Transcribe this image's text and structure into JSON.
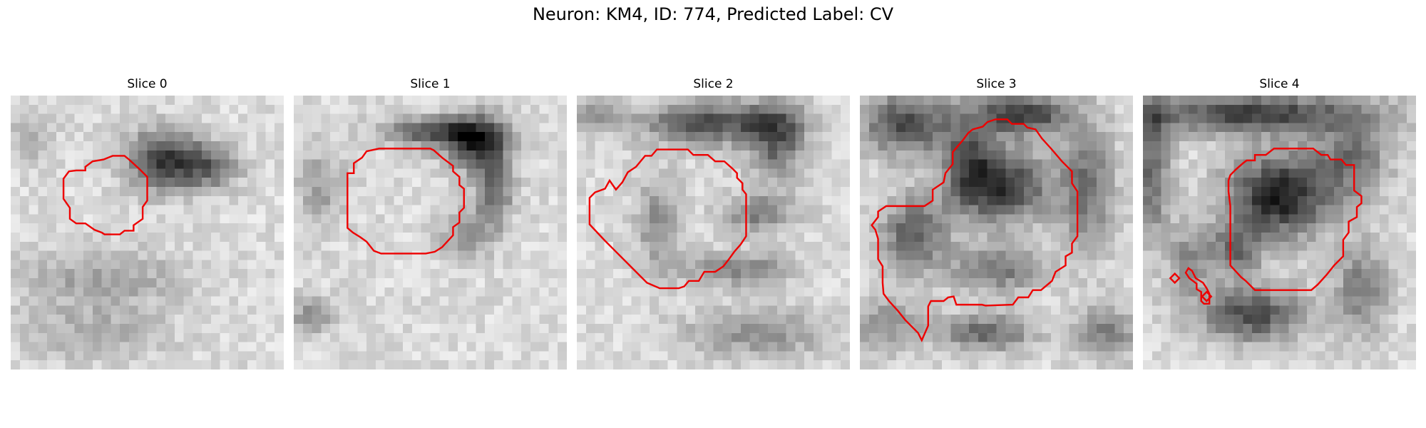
{
  "figure": {
    "title": "Neuron: KM4, ID: 774, Predicted Label: CV"
  },
  "panels": [
    {
      "title": "Slice 0",
      "blobs": [
        {
          "cx": 17,
          "cy": 7,
          "rx": 4.2,
          "ry": 3.2,
          "strength": 0.65
        },
        {
          "cx": 22,
          "cy": 8,
          "rx": 3.2,
          "ry": 2.2,
          "strength": 0.35
        },
        {
          "cx": 10,
          "cy": 20,
          "rx": 9.0,
          "ry": 3.2,
          "strength": 0.22
        },
        {
          "cx": 2,
          "cy": 5,
          "rx": 2.5,
          "ry": 2.5,
          "strength": 0.18
        },
        {
          "cx": 9,
          "cy": 26,
          "rx": 8.0,
          "ry": 3.0,
          "strength": 0.18
        }
      ],
      "contours": [
        [
          [
            7.2,
            8.2
          ],
          [
            8.2,
            8.2
          ],
          [
            8.2,
            7.8
          ],
          [
            9.0,
            7.2
          ],
          [
            10.2,
            7.0
          ],
          [
            11.2,
            6.6
          ],
          [
            12.5,
            6.6
          ],
          [
            13.0,
            7.0
          ],
          [
            14.2,
            8.1
          ],
          [
            15.0,
            8.9
          ],
          [
            15.0,
            11.5
          ],
          [
            14.5,
            12.2
          ],
          [
            14.5,
            13.5
          ],
          [
            13.5,
            14.2
          ],
          [
            13.5,
            14.8
          ],
          [
            12.5,
            14.8
          ],
          [
            12.0,
            15.2
          ],
          [
            10.3,
            15.2
          ],
          [
            10.0,
            15.0
          ],
          [
            9.2,
            14.7
          ],
          [
            8.2,
            14.0
          ],
          [
            7.2,
            14.0
          ],
          [
            6.5,
            13.5
          ],
          [
            6.5,
            12.3
          ],
          [
            5.8,
            11.3
          ],
          [
            5.8,
            9.1
          ],
          [
            6.4,
            8.3
          ]
        ]
      ]
    },
    {
      "title": "Slice 1",
      "blobs": [
        {
          "cx": 15,
          "cy": 4,
          "rx": 5.5,
          "ry": 1.6,
          "strength": 0.5
        },
        {
          "cx": 20,
          "cy": 5,
          "rx": 3.5,
          "ry": 3.0,
          "strength": 0.65
        },
        {
          "cx": 22,
          "cy": 10,
          "rx": 2.0,
          "ry": 4.0,
          "strength": 0.45
        },
        {
          "cx": 19,
          "cy": 15,
          "rx": 3.0,
          "ry": 2.5,
          "strength": 0.3
        },
        {
          "cx": 3,
          "cy": 10,
          "rx": 2.5,
          "ry": 4.0,
          "strength": 0.25
        },
        {
          "cx": 2,
          "cy": 24,
          "rx": 2.0,
          "ry": 2.0,
          "strength": 0.35
        }
      ],
      "contours": [
        [
          [
            5.9,
            8.5
          ],
          [
            6.6,
            8.5
          ],
          [
            6.6,
            7.4
          ],
          [
            7.5,
            6.8
          ],
          [
            8.0,
            6.1
          ],
          [
            9.4,
            5.8
          ],
          [
            15.0,
            5.8
          ],
          [
            15.4,
            6.0
          ],
          [
            16.3,
            6.8
          ],
          [
            17.5,
            7.7
          ],
          [
            17.5,
            8.3
          ],
          [
            18.2,
            8.9
          ],
          [
            18.2,
            9.8
          ],
          [
            18.7,
            10.2
          ],
          [
            18.7,
            12.3
          ],
          [
            18.2,
            12.8
          ],
          [
            18.2,
            13.9
          ],
          [
            17.5,
            14.4
          ],
          [
            17.5,
            15.3
          ],
          [
            16.3,
            16.6
          ],
          [
            15.5,
            17.1
          ],
          [
            14.5,
            17.3
          ],
          [
            9.6,
            17.3
          ],
          [
            8.8,
            17.0
          ],
          [
            8.0,
            16.0
          ],
          [
            7.3,
            15.5
          ],
          [
            6.5,
            15.0
          ],
          [
            5.9,
            14.5
          ],
          [
            5.9,
            11.2
          ],
          [
            5.9,
            9.5
          ]
        ]
      ]
    },
    {
      "title": "Slice 2",
      "blobs": [
        {
          "cx": 15,
          "cy": 3,
          "rx": 8.0,
          "ry": 2.3,
          "strength": 0.55
        },
        {
          "cx": 22,
          "cy": 5,
          "rx": 3.0,
          "ry": 4.5,
          "strength": 0.45
        },
        {
          "cx": 20,
          "cy": 13,
          "rx": 4.0,
          "ry": 2.0,
          "strength": 0.35
        },
        {
          "cx": 9,
          "cy": 14,
          "rx": 2.5,
          "ry": 5.0,
          "strength": 0.3
        },
        {
          "cx": 18,
          "cy": 19,
          "rx": 6.0,
          "ry": 1.8,
          "strength": 0.35
        },
        {
          "cx": 2,
          "cy": 2,
          "rx": 2.0,
          "ry": 2.0,
          "strength": 0.3
        },
        {
          "cx": 20,
          "cy": 26,
          "rx": 8.0,
          "ry": 2.5,
          "strength": 0.3
        }
      ],
      "contours": [
        [
          [
            4.3,
            10.3
          ],
          [
            5.0,
            9.5
          ],
          [
            5.6,
            8.4
          ],
          [
            6.5,
            7.8
          ],
          [
            7.5,
            6.6
          ],
          [
            8.2,
            6.6
          ],
          [
            8.8,
            5.9
          ],
          [
            12.2,
            5.9
          ],
          [
            12.8,
            6.5
          ],
          [
            14.4,
            6.5
          ],
          [
            15.2,
            7.2
          ],
          [
            16.2,
            7.2
          ],
          [
            17.1,
            8.0
          ],
          [
            17.6,
            8.5
          ],
          [
            17.6,
            9.0
          ],
          [
            18.2,
            9.6
          ],
          [
            18.2,
            10.3
          ],
          [
            18.6,
            10.8
          ],
          [
            18.6,
            15.4
          ],
          [
            18.0,
            16.3
          ],
          [
            17.3,
            17.1
          ],
          [
            16.8,
            17.8
          ],
          [
            16.1,
            18.7
          ],
          [
            15.2,
            19.3
          ],
          [
            14.0,
            19.3
          ],
          [
            13.4,
            20.3
          ],
          [
            12.3,
            20.3
          ],
          [
            11.8,
            20.9
          ],
          [
            11.2,
            21.1
          ],
          [
            9.1,
            21.1
          ],
          [
            7.7,
            20.5
          ],
          [
            6.0,
            18.8
          ],
          [
            4.0,
            16.8
          ],
          [
            3.0,
            15.8
          ],
          [
            1.4,
            14.1
          ],
          [
            1.4,
            11.2
          ],
          [
            2.0,
            10.6
          ],
          [
            3.1,
            10.2
          ],
          [
            3.6,
            9.3
          ]
        ]
      ]
    },
    {
      "title": "Slice 3",
      "blobs": [
        {
          "cx": 5,
          "cy": 3,
          "rx": 5.0,
          "ry": 3.5,
          "strength": 0.55
        },
        {
          "cx": 18,
          "cy": 2,
          "rx": 5.0,
          "ry": 2.2,
          "strength": 0.65
        },
        {
          "cx": 12,
          "cy": 7,
          "rx": 3.0,
          "ry": 5.0,
          "strength": 0.45
        },
        {
          "cx": 16,
          "cy": 10,
          "rx": 5.0,
          "ry": 4.0,
          "strength": 0.6
        },
        {
          "cx": 6,
          "cy": 15,
          "rx": 3.5,
          "ry": 4.0,
          "strength": 0.5
        },
        {
          "cx": 15,
          "cy": 19,
          "rx": 5.0,
          "ry": 2.5,
          "strength": 0.4
        },
        {
          "cx": 25,
          "cy": 10,
          "rx": 3.0,
          "ry": 7.0,
          "strength": 0.4
        },
        {
          "cx": 3,
          "cy": 25,
          "rx": 4.0,
          "ry": 3.0,
          "strength": 0.3
        },
        {
          "cx": 27,
          "cy": 26,
          "rx": 3.5,
          "ry": 3.0,
          "strength": 0.35
        },
        {
          "cx": 14,
          "cy": 26,
          "rx": 5.0,
          "ry": 2.0,
          "strength": 0.45
        }
      ],
      "contours": [
        [
          [
            2.0,
            12.7
          ],
          [
            2.9,
            12.1
          ],
          [
            7.1,
            12.1
          ],
          [
            8.0,
            11.5
          ],
          [
            8.0,
            10.3
          ],
          [
            9.2,
            9.5
          ],
          [
            9.4,
            8.5
          ],
          [
            9.8,
            8.0
          ],
          [
            10.2,
            7.5
          ],
          [
            10.2,
            6.2
          ],
          [
            10.7,
            5.6
          ],
          [
            11.3,
            4.9
          ],
          [
            11.9,
            4.1
          ],
          [
            12.4,
            3.7
          ],
          [
            13.5,
            3.4
          ],
          [
            14.0,
            2.9
          ],
          [
            14.9,
            2.6
          ],
          [
            16.2,
            2.6
          ],
          [
            16.7,
            3.1
          ],
          [
            18.0,
            3.1
          ],
          [
            18.4,
            3.5
          ],
          [
            19.3,
            3.7
          ],
          [
            20.0,
            4.7
          ],
          [
            21.0,
            5.8
          ],
          [
            22.2,
            7.2
          ],
          [
            23.3,
            8.3
          ],
          [
            23.3,
            9.6
          ],
          [
            23.9,
            10.5
          ],
          [
            23.9,
            15.4
          ],
          [
            23.3,
            16.2
          ],
          [
            23.3,
            17.2
          ],
          [
            22.6,
            17.6
          ],
          [
            22.6,
            18.6
          ],
          [
            21.5,
            19.3
          ],
          [
            21.1,
            20.3
          ],
          [
            19.9,
            21.3
          ],
          [
            19.0,
            21.3
          ],
          [
            18.5,
            22.1
          ],
          [
            17.4,
            22.1
          ],
          [
            16.8,
            22.9
          ],
          [
            13.8,
            23.0
          ],
          [
            13.4,
            22.9
          ],
          [
            10.6,
            22.9
          ],
          [
            10.3,
            22.0
          ],
          [
            9.7,
            22.1
          ],
          [
            9.2,
            22.5
          ],
          [
            7.8,
            22.5
          ],
          [
            7.5,
            23.1
          ],
          [
            7.5,
            25.2
          ],
          [
            6.8,
            26.8
          ],
          [
            6.4,
            26.0
          ],
          [
            5.7,
            25.3
          ],
          [
            5.0,
            24.6
          ],
          [
            4.2,
            23.6
          ],
          [
            3.2,
            22.5
          ],
          [
            2.6,
            21.7
          ],
          [
            2.5,
            20.5
          ],
          [
            2.5,
            18.7
          ],
          [
            2.0,
            17.9
          ],
          [
            2.0,
            15.7
          ],
          [
            1.7,
            14.7
          ],
          [
            1.3,
            14.2
          ],
          [
            2.0,
            13.3
          ]
        ]
      ]
    },
    {
      "title": "Slice 4",
      "blobs": [
        {
          "cx": 12,
          "cy": 2,
          "rx": 14.0,
          "ry": 2.2,
          "strength": 0.6
        },
        {
          "cx": 1,
          "cy": 8,
          "rx": 2.0,
          "ry": 8.0,
          "strength": 0.45
        },
        {
          "cx": 15,
          "cy": 11,
          "rx": 5.5,
          "ry": 4.5,
          "strength": 0.75
        },
        {
          "cx": 23,
          "cy": 7,
          "rx": 4.0,
          "ry": 4.0,
          "strength": 0.4
        },
        {
          "cx": 10,
          "cy": 17,
          "rx": 3.0,
          "ry": 3.0,
          "strength": 0.4
        },
        {
          "cx": 12,
          "cy": 24,
          "rx": 6.0,
          "ry": 3.0,
          "strength": 0.55
        },
        {
          "cx": 24,
          "cy": 21,
          "rx": 3.0,
          "ry": 5.0,
          "strength": 0.35
        },
        {
          "cx": 5,
          "cy": 18,
          "rx": 2.0,
          "ry": 4.0,
          "strength": 0.3
        }
      ],
      "contours": [
        [
          [
            9.4,
            9.3
          ],
          [
            9.6,
            8.7
          ],
          [
            10.2,
            8.1
          ],
          [
            11.0,
            7.4
          ],
          [
            11.4,
            7.1
          ],
          [
            12.3,
            7.1
          ],
          [
            12.3,
            6.5
          ],
          [
            13.5,
            6.5
          ],
          [
            14.4,
            5.8
          ],
          [
            18.7,
            5.8
          ],
          [
            19.6,
            6.5
          ],
          [
            20.3,
            6.5
          ],
          [
            20.6,
            7.0
          ],
          [
            21.8,
            7.0
          ],
          [
            22.3,
            7.6
          ],
          [
            23.2,
            7.6
          ],
          [
            23.2,
            10.4
          ],
          [
            24.0,
            11.0
          ],
          [
            24.0,
            11.8
          ],
          [
            23.5,
            12.2
          ],
          [
            23.5,
            13.3
          ],
          [
            22.6,
            13.8
          ],
          [
            22.6,
            15.0
          ],
          [
            22.0,
            15.8
          ],
          [
            22.0,
            17.6
          ],
          [
            21.0,
            18.6
          ],
          [
            20.2,
            19.6
          ],
          [
            19.2,
            20.7
          ],
          [
            18.5,
            21.3
          ],
          [
            12.3,
            21.3
          ],
          [
            11.3,
            20.3
          ],
          [
            10.8,
            19.9
          ],
          [
            9.6,
            18.6
          ],
          [
            9.6,
            12.1
          ],
          [
            9.4,
            10.5
          ]
        ],
        [
          [
            4.7,
            19.4
          ],
          [
            5.1,
            20.0
          ],
          [
            5.9,
            20.6
          ],
          [
            5.9,
            21.2
          ],
          [
            6.4,
            21.5
          ],
          [
            6.4,
            22.5
          ],
          [
            6.7,
            22.8
          ],
          [
            7.3,
            22.8
          ],
          [
            7.3,
            21.7
          ],
          [
            7.0,
            21.1
          ],
          [
            6.6,
            20.5
          ],
          [
            5.8,
            20.0
          ],
          [
            5.4,
            19.2
          ],
          [
            5.0,
            18.9
          ]
        ],
        [
          [
            3.0,
            20.0
          ],
          [
            3.5,
            19.5
          ],
          [
            4.0,
            20.0
          ],
          [
            3.5,
            20.5
          ]
        ],
        [
          [
            6.5,
            22.0
          ],
          [
            7.0,
            21.5
          ],
          [
            7.5,
            22.0
          ],
          [
            7.0,
            22.5
          ]
        ]
      ]
    }
  ]
}
